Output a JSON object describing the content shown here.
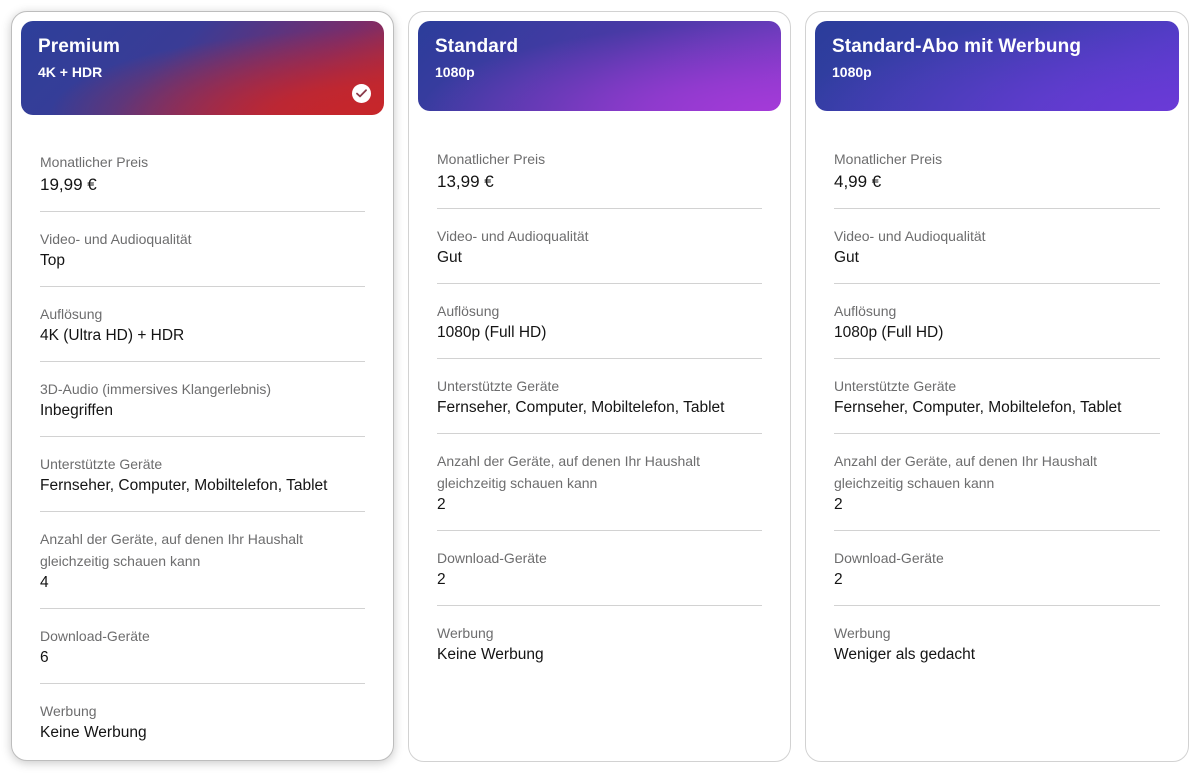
{
  "plans": [
    {
      "name": "Premium",
      "resolution": "4K + HDR",
      "selected": true,
      "attributes": [
        {
          "label": "Monatlicher Preis",
          "value": "19,99 €"
        },
        {
          "label": "Video- und Audioqualität",
          "value": "Top"
        },
        {
          "label": "Auflösung",
          "value": "4K (Ultra HD) + HDR"
        },
        {
          "label": "3D-Audio (immersives Klangerlebnis)",
          "value": "Inbegriffen"
        },
        {
          "label": "Unterstützte Geräte",
          "value": "Fernseher, Computer, Mobiltelefon, Tablet"
        },
        {
          "label": "Anzahl der Geräte, auf denen Ihr Haushalt gleichzeitig schauen kann",
          "value": "4"
        },
        {
          "label": "Download-Geräte",
          "value": "6"
        },
        {
          "label": "Werbung",
          "value": "Keine Werbung"
        }
      ]
    },
    {
      "name": "Standard",
      "resolution": "1080p",
      "selected": false,
      "attributes": [
        {
          "label": "Monatlicher Preis",
          "value": "13,99 €"
        },
        {
          "label": "Video- und Audioqualität",
          "value": "Gut"
        },
        {
          "label": "Auflösung",
          "value": "1080p (Full HD)"
        },
        {
          "label": "Unterstützte Geräte",
          "value": "Fernseher, Computer, Mobiltelefon, Tablet"
        },
        {
          "label": "Anzahl der Geräte, auf denen Ihr Haushalt gleichzeitig schauen kann",
          "value": "2"
        },
        {
          "label": "Download-Geräte",
          "value": "2"
        },
        {
          "label": "Werbung",
          "value": "Keine Werbung"
        }
      ]
    },
    {
      "name": "Standard-Abo mit Werbung",
      "resolution": "1080p",
      "selected": false,
      "attributes": [
        {
          "label": "Monatlicher Preis",
          "value": "4,99 €"
        },
        {
          "label": "Video- und Audioqualität",
          "value": "Gut"
        },
        {
          "label": "Auflösung",
          "value": "1080p (Full HD)"
        },
        {
          "label": "Unterstützte Geräte",
          "value": "Fernseher, Computer, Mobiltelefon, Tablet"
        },
        {
          "label": "Anzahl der Geräte, auf denen Ihr Haushalt gleichzeitig schauen kann",
          "value": "2"
        },
        {
          "label": "Download-Geräte",
          "value": "2"
        },
        {
          "label": "Werbung",
          "value": "Weniger als gedacht"
        }
      ]
    }
  ],
  "icons": {
    "selected": "check-circle-icon"
  },
  "colors": {
    "premium_gradient": [
      "#2d3f9a",
      "#c7262a"
    ],
    "standard_gradient": [
      "#2b3d9a",
      "#a43ad8"
    ],
    "ads_gradient": [
      "#2b3d9a",
      "#6a3ad6"
    ],
    "label_text": "#6d6d6e",
    "value_text": "#141414",
    "divider": "#d2d2d2"
  }
}
